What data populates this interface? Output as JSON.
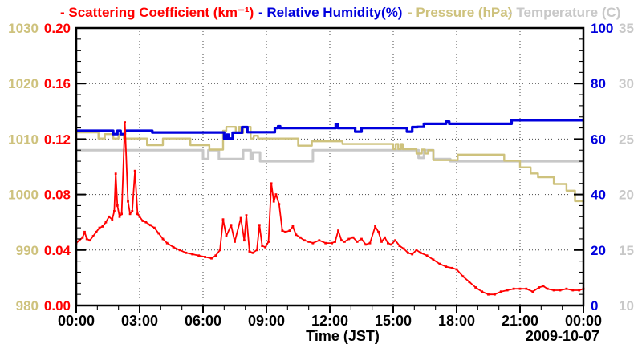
{
  "legend": [
    {
      "id": "scattering",
      "label": "- Scattering Coefficient (km⁻¹)",
      "color": "#ff0000"
    },
    {
      "id": "humidity",
      "label": "- Relative Humidity(%)",
      "color": "#0000dd"
    },
    {
      "id": "pressure",
      "label": "- Pressure (hPa)",
      "color": "#cec27d"
    },
    {
      "id": "temperature",
      "label": "- Temperature (C)",
      "color": "#c8c8c8"
    }
  ],
  "chart_data": {
    "type": "line",
    "title": "",
    "xlabel": "Time (JST)",
    "date_label": "2009-10-07",
    "x_unit": "hours",
    "x_range": [
      0,
      24
    ],
    "x_ticks": [
      "00:00",
      "03:00",
      "06:00",
      "09:00",
      "12:00",
      "15:00",
      "18:00",
      "21:00",
      "00:00"
    ],
    "grid": true,
    "axes": [
      {
        "id": "pressure",
        "label": "Pressure (hPa)",
        "color": "#cec27d",
        "min": 980,
        "max": 1030,
        "side": "left-outer",
        "tick_labels": [
          "980",
          "990",
          "1000",
          "1010",
          "1020",
          "1030"
        ]
      },
      {
        "id": "scattering",
        "label": "Scattering Coefficient (km⁻¹)",
        "color": "#ff0000",
        "min": 0,
        "max": 0.2,
        "side": "left-inner",
        "tick_labels": [
          "0.00",
          "0.04",
          "0.08",
          "0.12",
          "0.16",
          "0.20"
        ]
      },
      {
        "id": "humidity",
        "label": "Relative Humidity(%)",
        "color": "#0000dd",
        "min": 0,
        "max": 100,
        "side": "right-inner",
        "tick_labels": [
          "0",
          "20",
          "40",
          "60",
          "80",
          "100"
        ]
      },
      {
        "id": "temperature",
        "label": "Temperature (C)",
        "color": "#c8c8c8",
        "min": 10,
        "max": 35,
        "side": "right-outer",
        "tick_labels": [
          "10",
          "15",
          "20",
          "25",
          "30",
          "35"
        ]
      }
    ],
    "series": [
      {
        "id": "scattering-coefficient",
        "name": "Scattering Coefficient",
        "axis": "scattering",
        "color": "#ff0000",
        "style": "line",
        "markers": true,
        "width": 1.8,
        "points": [
          [
            0.0,
            0.045
          ],
          [
            0.15,
            0.047
          ],
          [
            0.3,
            0.049
          ],
          [
            0.4,
            0.053
          ],
          [
            0.5,
            0.048
          ],
          [
            0.65,
            0.047
          ],
          [
            0.8,
            0.05
          ],
          [
            0.95,
            0.053
          ],
          [
            1.1,
            0.056
          ],
          [
            1.25,
            0.057
          ],
          [
            1.4,
            0.06
          ],
          [
            1.55,
            0.064
          ],
          [
            1.7,
            0.062
          ],
          [
            1.8,
            0.068
          ],
          [
            1.87,
            0.095
          ],
          [
            1.95,
            0.072
          ],
          [
            2.05,
            0.064
          ],
          [
            2.15,
            0.066
          ],
          [
            2.3,
            0.132
          ],
          [
            2.45,
            0.075
          ],
          [
            2.55,
            0.066
          ],
          [
            2.65,
            0.068
          ],
          [
            2.78,
            0.097
          ],
          [
            2.9,
            0.066
          ],
          [
            3.0,
            0.064
          ],
          [
            3.15,
            0.061
          ],
          [
            3.3,
            0.06
          ],
          [
            3.5,
            0.058
          ],
          [
            3.7,
            0.056
          ],
          [
            3.9,
            0.052
          ],
          [
            4.1,
            0.048
          ],
          [
            4.3,
            0.045
          ],
          [
            4.6,
            0.042
          ],
          [
            4.9,
            0.04
          ],
          [
            5.2,
            0.038
          ],
          [
            5.5,
            0.037
          ],
          [
            5.8,
            0.036
          ],
          [
            6.1,
            0.035
          ],
          [
            6.4,
            0.034
          ],
          [
            6.6,
            0.036
          ],
          [
            6.8,
            0.04
          ],
          [
            6.95,
            0.062
          ],
          [
            7.1,
            0.05
          ],
          [
            7.33,
            0.058
          ],
          [
            7.5,
            0.046
          ],
          [
            7.79,
            0.063
          ],
          [
            7.95,
            0.047
          ],
          [
            8.05,
            0.065
          ],
          [
            8.2,
            0.039
          ],
          [
            8.35,
            0.038
          ],
          [
            8.55,
            0.04
          ],
          [
            8.67,
            0.058
          ],
          [
            8.8,
            0.043
          ],
          [
            8.95,
            0.042
          ],
          [
            9.1,
            0.046
          ],
          [
            9.23,
            0.088
          ],
          [
            9.35,
            0.075
          ],
          [
            9.45,
            0.08
          ],
          [
            9.6,
            0.073
          ],
          [
            9.75,
            0.054
          ],
          [
            9.9,
            0.053
          ],
          [
            10.1,
            0.054
          ],
          [
            10.25,
            0.057
          ],
          [
            10.4,
            0.051
          ],
          [
            10.6,
            0.049
          ],
          [
            10.8,
            0.047
          ],
          [
            11.0,
            0.046
          ],
          [
            11.2,
            0.045
          ],
          [
            11.5,
            0.047
          ],
          [
            11.8,
            0.045
          ],
          [
            12.1,
            0.045
          ],
          [
            12.25,
            0.046
          ],
          [
            12.4,
            0.054
          ],
          [
            12.55,
            0.047
          ],
          [
            12.7,
            0.046
          ],
          [
            12.9,
            0.048
          ],
          [
            13.1,
            0.049
          ],
          [
            13.3,
            0.046
          ],
          [
            13.5,
            0.048
          ],
          [
            13.7,
            0.044
          ],
          [
            13.9,
            0.045
          ],
          [
            14.15,
            0.057
          ],
          [
            14.3,
            0.053
          ],
          [
            14.45,
            0.046
          ],
          [
            14.6,
            0.049
          ],
          [
            14.75,
            0.045
          ],
          [
            14.9,
            0.044
          ],
          [
            15.1,
            0.047
          ],
          [
            15.3,
            0.043
          ],
          [
            15.5,
            0.041
          ],
          [
            15.7,
            0.038
          ],
          [
            15.9,
            0.037
          ],
          [
            16.1,
            0.04
          ],
          [
            16.3,
            0.038
          ],
          [
            16.6,
            0.036
          ],
          [
            16.9,
            0.033
          ],
          [
            17.2,
            0.03
          ],
          [
            17.5,
            0.028
          ],
          [
            17.8,
            0.027
          ],
          [
            18.0,
            0.026
          ],
          [
            18.3,
            0.021
          ],
          [
            18.6,
            0.017
          ],
          [
            18.9,
            0.013
          ],
          [
            19.2,
            0.01
          ],
          [
            19.5,
            0.008
          ],
          [
            19.8,
            0.008
          ],
          [
            20.1,
            0.01
          ],
          [
            20.4,
            0.011
          ],
          [
            20.7,
            0.012
          ],
          [
            21.0,
            0.012
          ],
          [
            21.3,
            0.012
          ],
          [
            21.6,
            0.01
          ],
          [
            21.9,
            0.013
          ],
          [
            22.1,
            0.014
          ],
          [
            22.3,
            0.012
          ],
          [
            22.6,
            0.011
          ],
          [
            22.9,
            0.011
          ],
          [
            23.2,
            0.012
          ],
          [
            23.5,
            0.011
          ],
          [
            23.8,
            0.011
          ],
          [
            24.0,
            0.012
          ]
        ]
      },
      {
        "id": "relative-humidity",
        "name": "Relative Humidity",
        "axis": "humidity",
        "color": "#0000dd",
        "style": "steps",
        "markers": false,
        "width": 3.2,
        "points": [
          [
            0,
            63.0
          ],
          [
            1.75,
            61.8
          ],
          [
            1.95,
            63.0
          ],
          [
            2.1,
            61.8
          ],
          [
            2.3,
            63.0
          ],
          [
            3.6,
            62.4
          ],
          [
            7.0,
            60.2
          ],
          [
            7.12,
            61.6
          ],
          [
            7.22,
            60.2
          ],
          [
            7.4,
            62.3
          ],
          [
            7.85,
            64.3
          ],
          [
            8.1,
            62.5
          ],
          [
            9.4,
            64.0
          ],
          [
            9.55,
            64.6
          ],
          [
            9.65,
            64.0
          ],
          [
            12.28,
            65.4
          ],
          [
            12.38,
            64.0
          ],
          [
            13.2,
            62.7
          ],
          [
            13.5,
            64.0
          ],
          [
            15.65,
            62.7
          ],
          [
            15.9,
            64.3
          ],
          [
            16.15,
            64.4
          ],
          [
            16.45,
            65.5
          ],
          [
            17.5,
            66.3
          ],
          [
            17.65,
            65.5
          ],
          [
            20.6,
            66.8
          ],
          [
            24,
            66.8
          ]
        ]
      },
      {
        "id": "pressure",
        "name": "Pressure",
        "axis": "pressure",
        "color": "#cec27d",
        "style": "steps",
        "markers": false,
        "width": 2.4,
        "points": [
          [
            0,
            1011.2
          ],
          [
            1.05,
            1010.1
          ],
          [
            1.35,
            1010.9
          ],
          [
            1.75,
            1010.1
          ],
          [
            2.0,
            1010.8
          ],
          [
            2.25,
            1010.1
          ],
          [
            3.35,
            1008.9
          ],
          [
            4.1,
            1010.1
          ],
          [
            5.4,
            1008.9
          ],
          [
            6.3,
            1008.1
          ],
          [
            6.95,
            1011.5
          ],
          [
            7.1,
            1012.2
          ],
          [
            7.55,
            1011.1
          ],
          [
            7.7,
            1012.2
          ],
          [
            7.78,
            1011.1
          ],
          [
            7.9,
            1012.2
          ],
          [
            8.25,
            1010.1
          ],
          [
            8.4,
            1010.6
          ],
          [
            8.6,
            1010.1
          ],
          [
            10.5,
            1008.8
          ],
          [
            11.15,
            1009.6
          ],
          [
            12.6,
            1009.1
          ],
          [
            15.0,
            1008.2
          ],
          [
            15.12,
            1009.1
          ],
          [
            15.24,
            1008.2
          ],
          [
            15.36,
            1009.1
          ],
          [
            15.45,
            1008.2
          ],
          [
            16.1,
            1007.4
          ],
          [
            16.35,
            1008.1
          ],
          [
            16.5,
            1007.4
          ],
          [
            16.65,
            1008.0
          ],
          [
            16.9,
            1006.2
          ],
          [
            18.05,
            1007.2
          ],
          [
            20.25,
            1006.1
          ],
          [
            21.0,
            1004.9
          ],
          [
            21.5,
            1003.8
          ],
          [
            21.85,
            1003.1
          ],
          [
            22.6,
            1001.9
          ],
          [
            23.2,
            1000.7
          ],
          [
            23.6,
            998.8
          ],
          [
            24,
            998.6
          ]
        ]
      },
      {
        "id": "temperature",
        "name": "Temperature",
        "axis": "temperature",
        "color": "#c8c8c8",
        "style": "steps",
        "markers": false,
        "width": 3,
        "points": [
          [
            0,
            24.0
          ],
          [
            6.0,
            23.2
          ],
          [
            6.25,
            24.0
          ],
          [
            6.75,
            23.2
          ],
          [
            7.9,
            24.0
          ],
          [
            8.25,
            23.2
          ],
          [
            8.35,
            23.8
          ],
          [
            8.7,
            23.0
          ],
          [
            11.2,
            24.0
          ],
          [
            16.2,
            23.3
          ],
          [
            16.45,
            24.0
          ],
          [
            16.9,
            23.2
          ],
          [
            17.7,
            23.0
          ],
          [
            24,
            23.0
          ]
        ]
      }
    ]
  }
}
